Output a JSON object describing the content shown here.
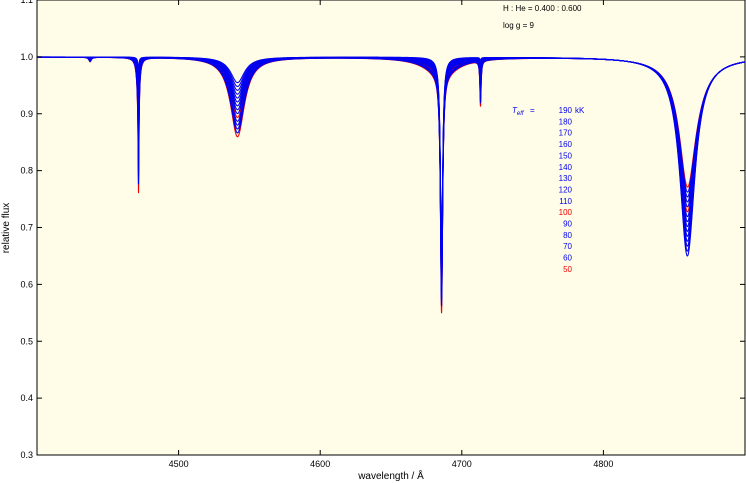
{
  "chart_data": {
    "type": "line",
    "title": "",
    "xlabel": "wavelength / Å",
    "ylabel": "relative flux",
    "xlim": [
      4400,
      4900
    ],
    "ylim": [
      0.3,
      1.1
    ],
    "grid": false,
    "background_color": "#fffde7",
    "x_ticks": [
      4500,
      4600,
      4700,
      4800
    ],
    "y_ticks": [
      0.3,
      0.4,
      0.5,
      0.6,
      0.7,
      0.8,
      0.9,
      1.0,
      1.1
    ],
    "x_tick_labels": [
      "4500",
      "4600",
      "4700",
      "4800"
    ],
    "y_tick_labels": [
      "0.3",
      "0.4",
      "0.5",
      "0.6",
      "0.7",
      "0.8",
      "0.9",
      "1.0",
      "1.1"
    ],
    "annotations": {
      "composition": "H : He = 0.400 : 0.600",
      "gravity": "log g  =  9"
    },
    "legend": {
      "placement": "right-center",
      "title": "T",
      "title_subscript": "eff",
      "title_equals": "=",
      "unit": "kK",
      "entries": [
        "190",
        "180",
        "170",
        "160",
        "150",
        "140",
        "130",
        "120",
        "110",
        "100",
        "90",
        "80",
        "70",
        "60",
        "50"
      ],
      "highlight_entries": [
        "100",
        "50"
      ]
    },
    "series_color_default": "#0000ee",
    "series_color_highlight": "#ee0000",
    "lines": [
      {
        "center": 4437.5,
        "depth_min": 0.0,
        "depth_max": 0.008,
        "width": 1.0
      },
      {
        "center": 4471.5,
        "depth_min": 0.004,
        "depth_max": 0.06,
        "width": 1.2
      },
      {
        "center": 4471.7,
        "depth_min": 0.02,
        "depth_max": 0.18,
        "width": 0.35
      },
      {
        "center": 4541.6,
        "depth_min": 0.045,
        "depth_max": 0.14,
        "width": 6.0
      },
      {
        "center": 4685.7,
        "depth_min": 0.4,
        "depth_max": 0.42,
        "width": 0.9
      },
      {
        "center": 4685.7,
        "depth_min": 0.0,
        "depth_max": 0.03,
        "width": 14.0
      },
      {
        "center": 4713.2,
        "depth_min": 0.005,
        "depth_max": 0.08,
        "width": 0.5
      },
      {
        "center": 4859.3,
        "depth_min": 0.35,
        "depth_max": 0.18,
        "width": 6.5
      },
      {
        "center": 4861.3,
        "depth_min": 0.0,
        "depth_max": 0.05,
        "width": 12.0
      }
    ],
    "emission_peak": {
      "center": 4685.7,
      "height_min": 0.12,
      "height_max": 0.0,
      "width": 0.25
    }
  }
}
